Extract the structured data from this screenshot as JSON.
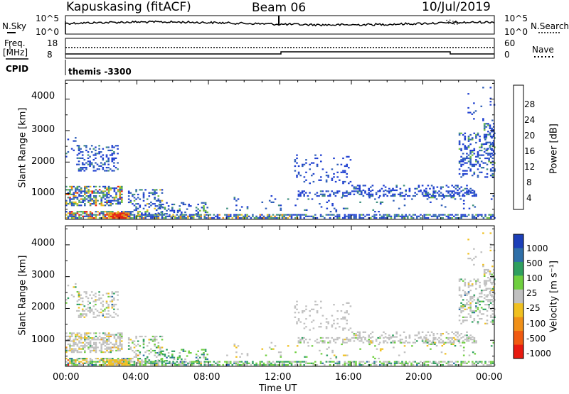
{
  "header": {
    "title": "Kapuskasing (fitACF)",
    "beam": "Beam 06",
    "date": "10/Jul/2019"
  },
  "noise_panel": {
    "left_label": "N.Sky",
    "right_label": "N.Search",
    "left_ticks": [
      "10^5",
      "10^0"
    ],
    "right_ticks": [
      "10^5",
      "10^0"
    ]
  },
  "freq_panel": {
    "left_label_1": "Freq.",
    "left_label_2": "[MHz]",
    "right_label": "Nave",
    "left_ticks": [
      "18",
      "8"
    ],
    "right_ticks": [
      "60",
      "0"
    ]
  },
  "cpid": {
    "label": "CPID",
    "value": "themis -3300"
  },
  "chart_data": [
    {
      "type": "heatmap",
      "title": "",
      "xlabel": "Time UT",
      "ylabel": "Slant Range [km]",
      "x_ticks": [
        "00:00",
        "04:00",
        "08:00",
        "12:00",
        "16:00",
        "20:00",
        "00:00"
      ],
      "y_ticks": [
        1000,
        2000,
        3000,
        4000
      ],
      "xlim_hours": [
        0,
        24
      ],
      "ylim_km": [
        180,
        4600
      ],
      "colorbar": {
        "label": "Power [dB]",
        "ticks": [
          4,
          8,
          12,
          16,
          20,
          24,
          28
        ],
        "range": [
          0,
          30
        ],
        "colors": [
          "#1f3fd0",
          "#2f5fb8",
          "#3f8f7f",
          "#6fbf3f",
          "#e8c020",
          "#f08a10",
          "#e82010"
        ]
      }
    },
    {
      "type": "heatmap",
      "title": "",
      "xlabel": "Time UT",
      "ylabel": "Slant Range [km]",
      "x_ticks": [
        "00:00",
        "04:00",
        "08:00",
        "12:00",
        "16:00",
        "20:00",
        "00:00"
      ],
      "y_ticks": [
        1000,
        2000,
        3000,
        4000
      ],
      "xlim_hours": [
        0,
        24
      ],
      "ylim_km": [
        180,
        4600
      ],
      "colorbar": {
        "label": "Velocity [m s⁻¹]",
        "ticks": [
          "1000",
          "500",
          "100",
          "25",
          "-25",
          "-100",
          "-500",
          "-1000"
        ],
        "colors": [
          "#1c3fb8",
          "#2f6fa8",
          "#2f9f5f",
          "#6fcf3f",
          "#c0c0c0",
          "#f0c020",
          "#f09018",
          "#f05a10",
          "#e81a10"
        ]
      }
    }
  ]
}
